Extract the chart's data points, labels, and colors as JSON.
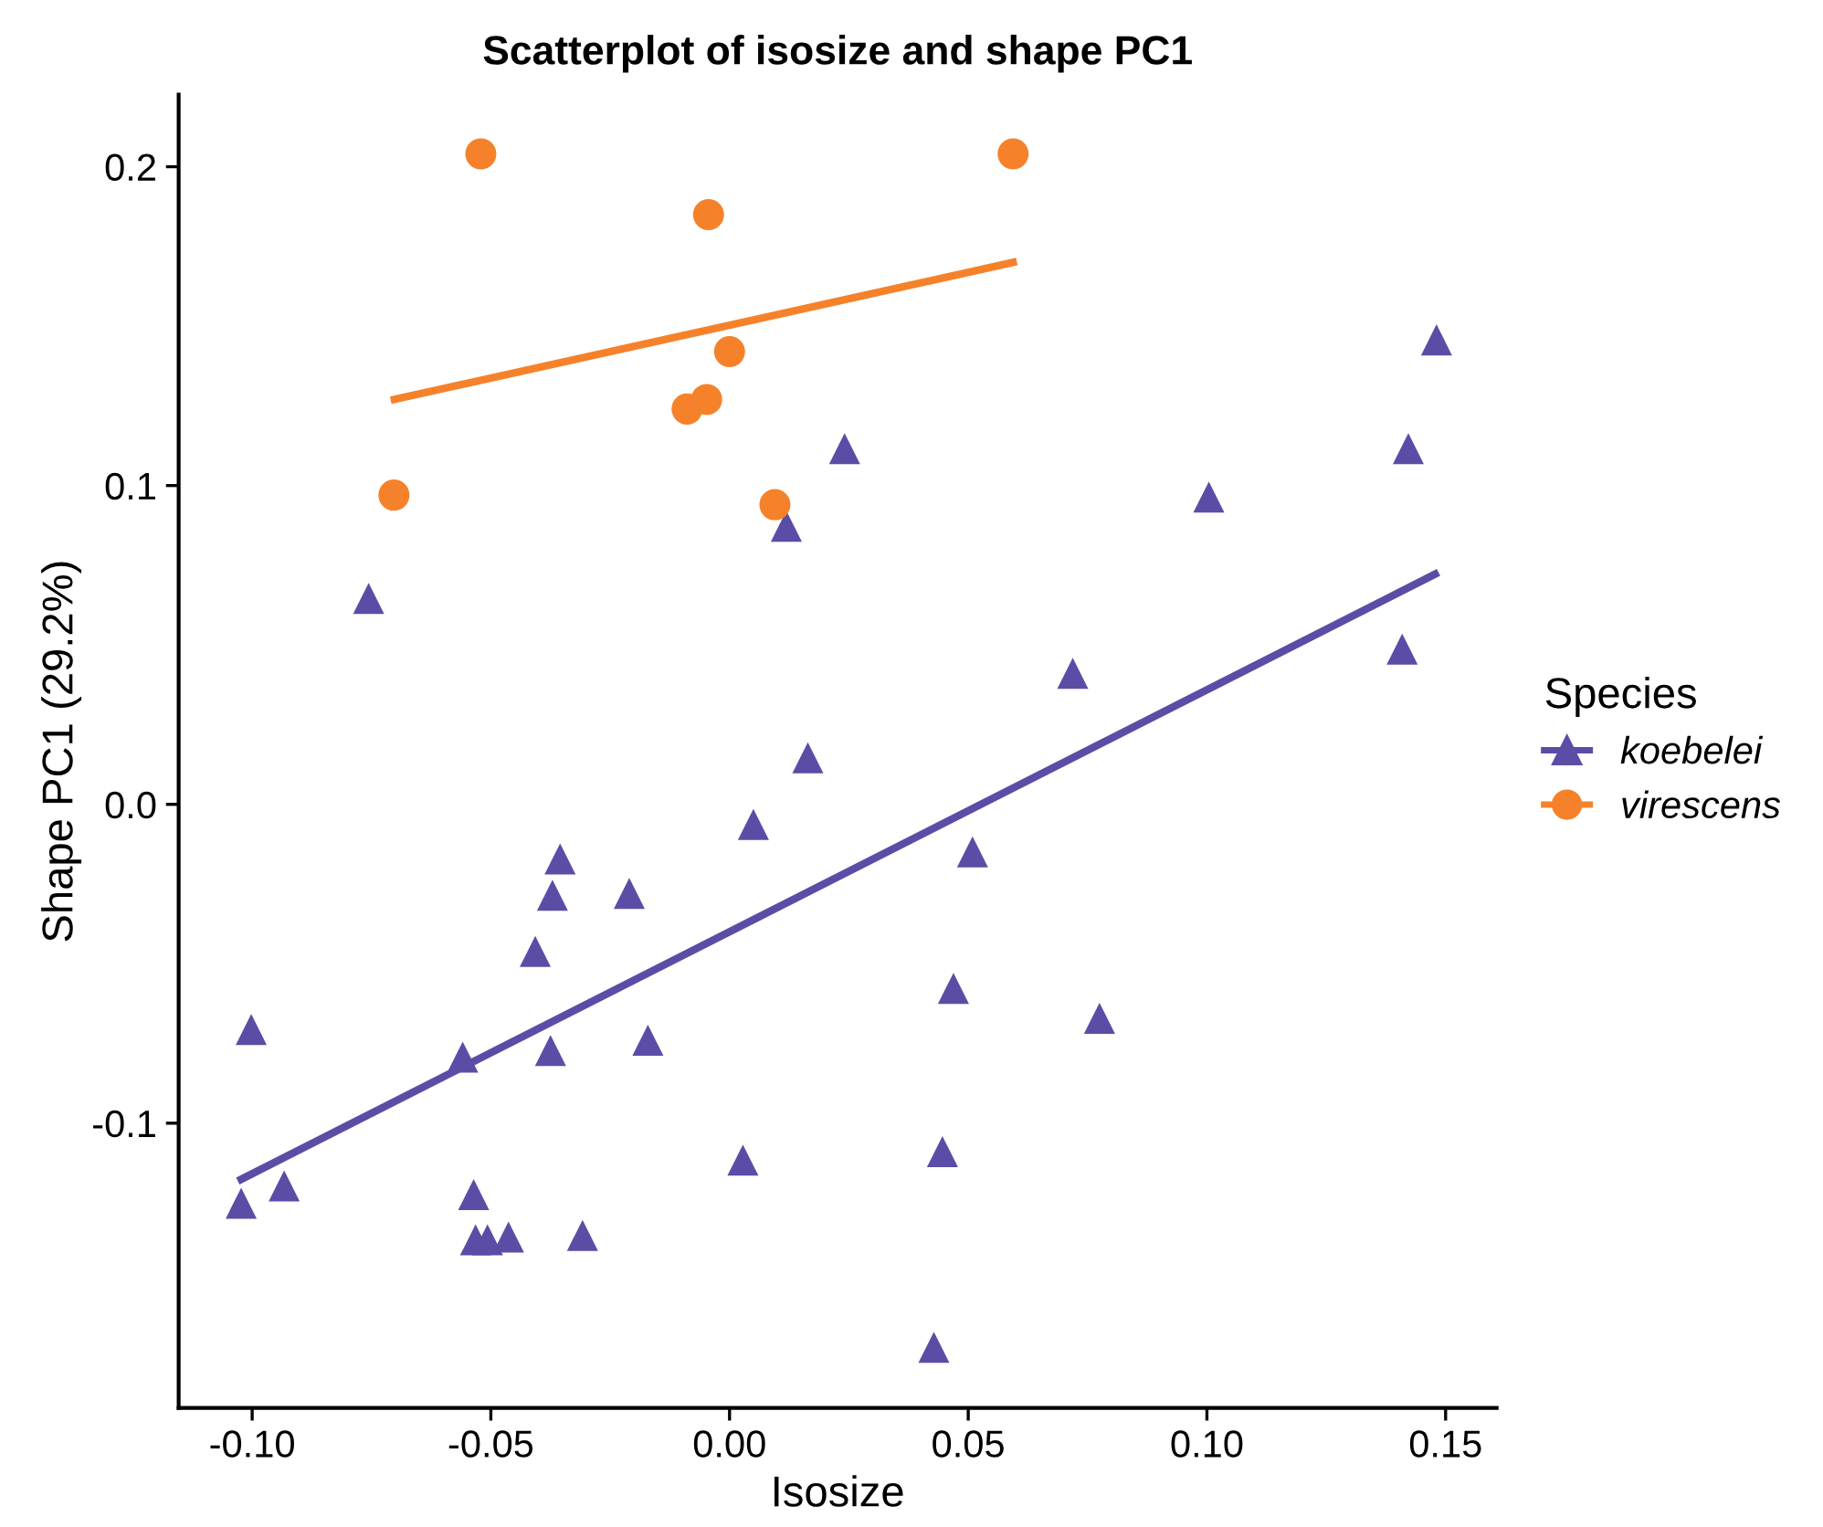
{
  "chart_data": {
    "type": "scatter",
    "title": "Scatterplot of isosize and shape PC1",
    "xlabel": "Isosize",
    "ylabel": "Shape PC1 (29.2%)",
    "legend_title": "Species",
    "legend": "right",
    "grid": false,
    "xlim": [
      -0.1154,
      0.1607
    ],
    "ylim": [
      -0.1893,
      0.2226
    ],
    "xticks": [
      {
        "value": -0.1,
        "label": "-0.10"
      },
      {
        "value": -0.05,
        "label": "-0.05"
      },
      {
        "value": 0,
        "label": "0.00"
      },
      {
        "value": 0.05,
        "label": "0.05"
      },
      {
        "value": 0.1,
        "label": "0.10"
      },
      {
        "value": 0.15,
        "label": "0.15"
      }
    ],
    "yticks": [
      {
        "value": -0.1,
        "label": "-0.1"
      },
      {
        "value": 0,
        "label": "0.0"
      },
      {
        "value": 0.1,
        "label": "0.1"
      },
      {
        "value": 0.2,
        "label": "0.2"
      }
    ],
    "series": [
      {
        "name": "koebelei",
        "marker": "triangle",
        "color": "#5b4da6",
        "x": [
          0.0241,
          0.0119,
          0.1004,
          0.1422,
          0.1481,
          -0.0756,
          0.0719,
          0.1409,
          0.0164,
          0.005,
          0.0509,
          -0.0355,
          -0.0371,
          -0.021,
          -0.0407,
          0.0469,
          0.0775,
          -0.1002,
          -0.0559,
          -0.0375,
          -0.0171,
          -0.1023,
          -0.0933,
          -0.0536,
          -0.0532,
          -0.0507,
          -0.0463,
          -0.0308,
          0.0028,
          0.0446,
          0.0428
        ],
        "values": [
          0.1116,
          0.0872,
          0.0964,
          0.1116,
          0.1457,
          0.0646,
          0.0411,
          0.0487,
          0.0146,
          -0.0063,
          -0.0149,
          -0.0171,
          -0.0285,
          -0.0279,
          -0.0461,
          -0.0577,
          -0.0671,
          -0.0706,
          -0.0793,
          -0.0772,
          -0.074,
          -0.1251,
          -0.1197,
          -0.1224,
          -0.1366,
          -0.1366,
          -0.1357,
          -0.1352,
          -0.1116,
          -0.1089,
          -0.1703
        ]
      },
      {
        "name": "virescens",
        "marker": "circle",
        "color": "#f5822a",
        "x": [
          -0.0521,
          0.0594,
          -0.0044,
          0.0,
          -0.0089,
          -0.0048,
          -0.0703,
          0.0095
        ],
        "values": [
          0.204,
          0.204,
          0.185,
          0.142,
          0.124,
          0.127,
          0.097,
          0.094
        ]
      },
      {
        "type": "line",
        "color": "#5b4da6",
        "x": [
          -0.1023,
          0.1478
        ],
        "values": [
          -0.1176,
          0.0722
        ]
      },
      {
        "type": "line",
        "color": "#f5822a",
        "x": [
          -0.0702,
          0.0594
        ],
        "values": [
          0.127,
          0.17
        ]
      }
    ]
  }
}
